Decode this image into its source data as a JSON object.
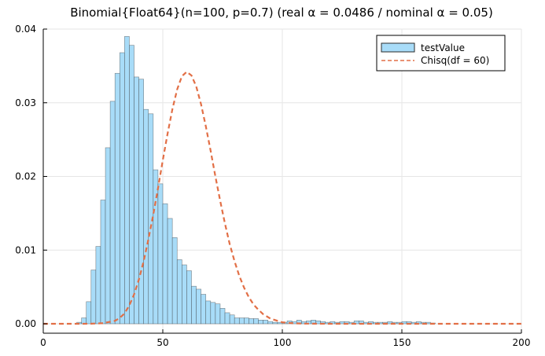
{
  "chart_data": {
    "type": "bar",
    "title": "Binomial{Float64}(n=100, p=0.7)   (real α = 0.0486 / nominal α = 0.05)",
    "xlabel": "",
    "ylabel": "",
    "xlim": [
      0,
      200
    ],
    "ylim": [
      0,
      0.04
    ],
    "x_ticks": [
      0,
      50,
      100,
      150,
      200
    ],
    "y_ticks": [
      0.0,
      0.01,
      0.02,
      0.03,
      0.04
    ],
    "x_tick_labels": [
      "0",
      "50",
      "100",
      "150",
      "200"
    ],
    "y_tick_labels": [
      "0.00",
      "0.01",
      "0.02",
      "0.03",
      "0.04"
    ],
    "grid": true,
    "legend_position": "top-right",
    "series": [
      {
        "name": "testValue",
        "kind": "histogram",
        "color": "#a8dcf8",
        "edge_color": "#2b2b2b",
        "bin_width": 2,
        "bin_starts": [
          14,
          16,
          18,
          20,
          22,
          24,
          26,
          28,
          30,
          32,
          34,
          36,
          38,
          40,
          42,
          44,
          46,
          48,
          50,
          52,
          54,
          56,
          58,
          60,
          62,
          64,
          66,
          68,
          70,
          72,
          74,
          76,
          78,
          80,
          82,
          84,
          86,
          88,
          90,
          92,
          94,
          96,
          98,
          100,
          102,
          104,
          106,
          108,
          110,
          112,
          114,
          116,
          118,
          120,
          122,
          124,
          126,
          128,
          130,
          132,
          134,
          136,
          138,
          140,
          142,
          144,
          146,
          148,
          150,
          152,
          154,
          156,
          158,
          160,
          162
        ],
        "values": [
          0.0002,
          0.0008,
          0.003,
          0.0073,
          0.0105,
          0.0168,
          0.0239,
          0.0302,
          0.034,
          0.0368,
          0.039,
          0.0378,
          0.0335,
          0.0332,
          0.0291,
          0.0285,
          0.0209,
          0.019,
          0.0163,
          0.0143,
          0.0117,
          0.0087,
          0.008,
          0.0072,
          0.0051,
          0.0047,
          0.004,
          0.0031,
          0.0029,
          0.0027,
          0.0021,
          0.0015,
          0.0012,
          0.0008,
          0.0008,
          0.0008,
          0.0007,
          0.0007,
          0.0005,
          0.0005,
          0.0003,
          0.0002,
          0.0002,
          0.0002,
          0.0004,
          0.0003,
          0.0005,
          0.0003,
          0.0004,
          0.0005,
          0.0004,
          0.0003,
          0.0002,
          0.0003,
          0.0002,
          0.0003,
          0.0003,
          0.0002,
          0.0004,
          0.0004,
          0.0002,
          0.0003,
          0.0002,
          0.0002,
          0.0002,
          0.0003,
          0.0002,
          0.0002,
          0.0003,
          0.0003,
          0.0002,
          0.0003,
          0.0002,
          0.0002,
          0.0001
        ]
      },
      {
        "name": "Chisq(df = 60)",
        "kind": "line",
        "style": "dashed",
        "color": "#e26f46",
        "x": [
          0,
          15,
          20,
          25,
          30,
          32,
          34,
          36,
          38,
          40,
          42,
          44,
          46,
          48,
          50,
          52,
          54,
          56,
          58,
          60,
          62,
          64,
          66,
          68,
          70,
          72,
          74,
          76,
          78,
          80,
          82,
          84,
          86,
          88,
          90,
          92,
          95,
          100,
          105,
          110,
          120,
          150,
          200
        ],
        "y": [
          0.0,
          0.0,
          1e-05,
          8e-05,
          0.0004,
          0.0008,
          0.0014,
          0.0025,
          0.004,
          0.006,
          0.0085,
          0.0115,
          0.0148,
          0.0184,
          0.0222,
          0.0258,
          0.0291,
          0.0318,
          0.0336,
          0.0342,
          0.0337,
          0.0322,
          0.0298,
          0.0268,
          0.0235,
          0.02,
          0.0167,
          0.0136,
          0.0108,
          0.0085,
          0.0065,
          0.0049,
          0.0036,
          0.0026,
          0.0019,
          0.0013,
          0.0007,
          0.0002,
          6e-05,
          2e-05,
          0.0,
          0.0,
          0.0
        ]
      }
    ]
  }
}
